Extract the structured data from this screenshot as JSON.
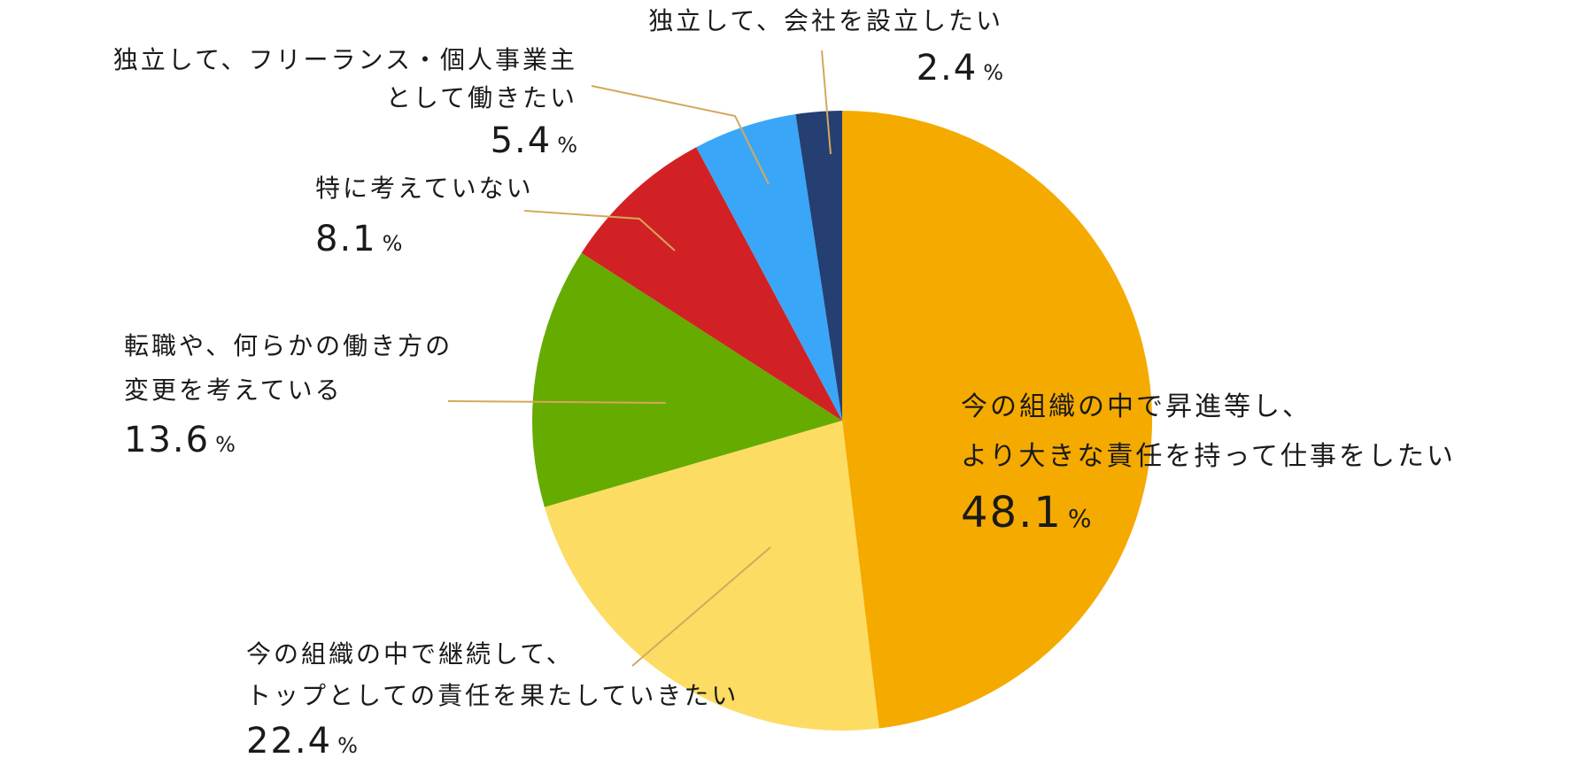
{
  "chart_data": {
    "type": "pie",
    "slices": [
      {
        "label_lines": [
          "今の組織の中で昇進等し、",
          "より大きな責任を持って仕事をしたい"
        ],
        "value": 48.1,
        "value_text": "48.1",
        "color": "#F5AA00"
      },
      {
        "label_lines": [
          "今の組織の中で継続して、",
          "トップとしての責任を果たしていきたい"
        ],
        "value": 22.4,
        "value_text": "22.4",
        "color": "#FDDC64"
      },
      {
        "label_lines": [
          "転職や、何らかの働き方の",
          "変更を考えている"
        ],
        "value": 13.6,
        "value_text": "13.6",
        "color": "#66AB00"
      },
      {
        "label_lines": [
          "特に考えていない"
        ],
        "value": 8.1,
        "value_text": "8.1",
        "color": "#D22125"
      },
      {
        "label_lines": [
          "独立して、フリーランス・個人事業主",
          "として働きたい"
        ],
        "value": 5.4,
        "value_text": "5.4",
        "color": "#3AA6F8"
      },
      {
        "label_lines": [
          "独立して、会社を設立したい"
        ],
        "value": 2.4,
        "value_text": "2.4",
        "color": "#253F72"
      }
    ],
    "unit": "%",
    "start_angle_deg": 0,
    "direction": "clockwise",
    "leader_color": "#D4A85C",
    "legend": "none"
  }
}
